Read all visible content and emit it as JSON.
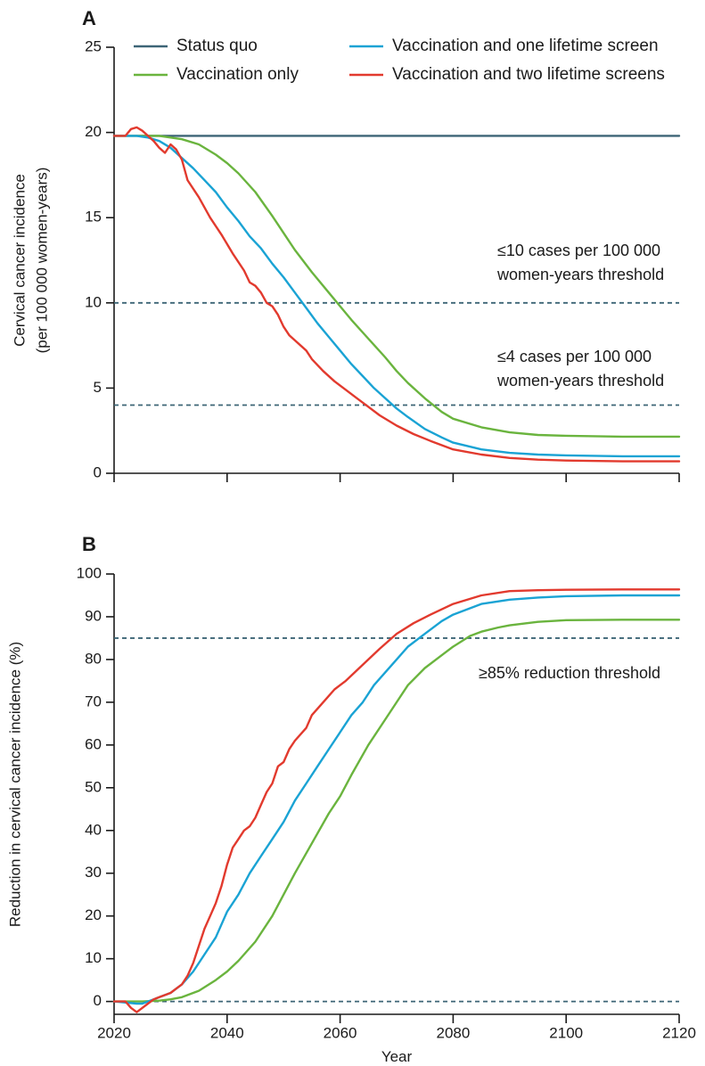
{
  "chart_data": [
    {
      "panel": "A",
      "type": "line",
      "xlabel": "",
      "ylabel_lines": [
        "Cervical cancer incidence",
        "(per 100 000 women-years)"
      ],
      "xlim": [
        2020,
        2120
      ],
      "ylim": [
        0,
        25
      ],
      "xticks": [
        2020,
        2040,
        2060,
        2080,
        2100,
        2120
      ],
      "xtick_labels": [
        "",
        "",
        "",
        "",
        "",
        ""
      ],
      "yticks": [
        0,
        5,
        10,
        15,
        20,
        25
      ],
      "ytick_labels": [
        "0",
        "5",
        "10",
        "15",
        "20",
        "25"
      ],
      "grid": false,
      "legend": [
        {
          "label": "Status quo",
          "color": "#3d6576"
        },
        {
          "label": "Vaccination and one lifetime screen",
          "color": "#1aa3d4"
        },
        {
          "label": "Vaccination only",
          "color": "#6ab43e"
        },
        {
          "label": "Vaccination and two lifetime screens",
          "color": "#e23a2e"
        }
      ],
      "series": [
        {
          "name": "Status quo",
          "color": "#3d6576",
          "x": [
            2020,
            2025,
            2030,
            2040,
            2060,
            2080,
            2100,
            2120
          ],
          "y": [
            19.8,
            19.8,
            19.8,
            19.8,
            19.8,
            19.8,
            19.8,
            19.8
          ]
        },
        {
          "name": "Vaccination only",
          "color": "#6ab43e",
          "x": [
            2020,
            2025,
            2028,
            2030,
            2032,
            2035,
            2038,
            2040,
            2042,
            2045,
            2048,
            2050,
            2052,
            2055,
            2058,
            2060,
            2062,
            2065,
            2068,
            2070,
            2072,
            2075,
            2078,
            2080,
            2085,
            2090,
            2095,
            2100,
            2110,
            2120
          ],
          "y": [
            19.8,
            19.8,
            19.8,
            19.7,
            19.6,
            19.3,
            18.7,
            18.2,
            17.6,
            16.5,
            15.1,
            14.1,
            13.1,
            11.8,
            10.6,
            9.8,
            9.0,
            7.9,
            6.8,
            6.0,
            5.3,
            4.4,
            3.6,
            3.2,
            2.7,
            2.4,
            2.25,
            2.2,
            2.15,
            2.15
          ]
        },
        {
          "name": "Vaccination and one lifetime screen",
          "color": "#1aa3d4",
          "x": [
            2020,
            2024,
            2026,
            2028,
            2030,
            2032,
            2034,
            2036,
            2038,
            2040,
            2042,
            2044,
            2046,
            2048,
            2050,
            2052,
            2054,
            2056,
            2058,
            2060,
            2062,
            2064,
            2066,
            2068,
            2070,
            2072,
            2075,
            2078,
            2080,
            2085,
            2090,
            2095,
            2100,
            2110,
            2120
          ],
          "y": [
            19.8,
            19.8,
            19.7,
            19.5,
            19.1,
            18.5,
            17.9,
            17.2,
            16.5,
            15.6,
            14.8,
            13.9,
            13.2,
            12.3,
            11.5,
            10.6,
            9.7,
            8.8,
            8.0,
            7.2,
            6.4,
            5.7,
            5.0,
            4.4,
            3.8,
            3.3,
            2.6,
            2.1,
            1.8,
            1.4,
            1.2,
            1.1,
            1.05,
            1.0,
            1.0
          ]
        },
        {
          "name": "Vaccination and two lifetime screens",
          "color": "#e23a2e",
          "x": [
            2020,
            2022,
            2023,
            2024,
            2025,
            2026,
            2027,
            2028,
            2029,
            2030,
            2031,
            2032,
            2033,
            2035,
            2037,
            2039,
            2041,
            2043,
            2044,
            2045,
            2046,
            2047,
            2048,
            2049,
            2050,
            2051,
            2052,
            2054,
            2055,
            2057,
            2059,
            2061,
            2063,
            2065,
            2067,
            2070,
            2073,
            2076,
            2080,
            2085,
            2090,
            2095,
            2100,
            2110,
            2120
          ],
          "y": [
            19.8,
            19.8,
            20.2,
            20.3,
            20.1,
            19.8,
            19.5,
            19.1,
            18.8,
            19.3,
            19.0,
            18.4,
            17.2,
            16.2,
            15.0,
            14.0,
            12.9,
            11.9,
            11.2,
            11.0,
            10.6,
            10.0,
            9.8,
            9.3,
            8.6,
            8.1,
            7.8,
            7.2,
            6.7,
            6.0,
            5.4,
            4.9,
            4.4,
            3.9,
            3.4,
            2.8,
            2.3,
            1.9,
            1.4,
            1.1,
            0.9,
            0.8,
            0.75,
            0.7,
            0.7
          ]
        }
      ],
      "thresholds": [
        {
          "y": 10,
          "label_lines": [
            "≤10 cases per 100 000",
            "women-years threshold"
          ]
        },
        {
          "y": 4,
          "label_lines": [
            "≤4 cases per 100 000",
            "women-years threshold"
          ]
        }
      ]
    },
    {
      "panel": "B",
      "type": "line",
      "xlabel": "Year",
      "ylabel_lines": [
        "Reduction in cervical cancer incidence (%)"
      ],
      "xlim": [
        2020,
        2120
      ],
      "ylim": [
        -3,
        100
      ],
      "xticks": [
        2020,
        2040,
        2060,
        2080,
        2100,
        2120
      ],
      "xtick_labels": [
        "2020",
        "2040",
        "2060",
        "2080",
        "2100",
        "2120"
      ],
      "yticks": [
        0,
        10,
        20,
        30,
        40,
        50,
        60,
        70,
        80,
        90,
        100
      ],
      "ytick_labels": [
        "0",
        "10",
        "20",
        "30",
        "40",
        "50",
        "60",
        "70",
        "80",
        "90",
        "100"
      ],
      "grid": false,
      "series": [
        {
          "name": "Vaccination only",
          "color": "#6ab43e",
          "x": [
            2020,
            2025,
            2028,
            2030,
            2032,
            2035,
            2038,
            2040,
            2042,
            2045,
            2048,
            2050,
            2052,
            2055,
            2058,
            2060,
            2062,
            2065,
            2068,
            2070,
            2072,
            2075,
            2078,
            2080,
            2083,
            2085,
            2088,
            2090,
            2095,
            2100,
            2110,
            2120
          ],
          "y": [
            0,
            0,
            0.2,
            0.5,
            1,
            2.5,
            5,
            7,
            9.5,
            14,
            20,
            25,
            30,
            37,
            44,
            48,
            53,
            60,
            66,
            70,
            74,
            78,
            81,
            83,
            85.5,
            86.5,
            87.5,
            88,
            88.8,
            89.2,
            89.3,
            89.3
          ]
        },
        {
          "name": "Vaccination and one lifetime screen",
          "color": "#1aa3d4",
          "x": [
            2020,
            2024,
            2025,
            2026,
            2027,
            2028,
            2030,
            2032,
            2034,
            2036,
            2038,
            2040,
            2042,
            2044,
            2046,
            2048,
            2050,
            2052,
            2054,
            2056,
            2058,
            2060,
            2062,
            2064,
            2066,
            2068,
            2070,
            2072,
            2075,
            2078,
            2080,
            2085,
            2090,
            2095,
            2100,
            2110,
            2120
          ],
          "y": [
            0,
            -0.5,
            -0.5,
            0,
            0.5,
            1,
            2,
            4,
            7,
            11,
            15,
            21,
            25,
            30,
            34,
            38,
            42,
            47,
            51,
            55,
            59,
            63,
            67,
            70,
            74,
            77,
            80,
            83,
            86,
            89,
            90.5,
            93,
            94,
            94.5,
            94.8,
            95,
            95
          ]
        },
        {
          "name": "Vaccination and two lifetime screens",
          "color": "#e23a2e",
          "x": [
            2020,
            2022,
            2023,
            2024,
            2025,
            2026,
            2027,
            2028,
            2029,
            2030,
            2031,
            2032,
            2033,
            2034,
            2035,
            2036,
            2037,
            2038,
            2039,
            2040,
            2041,
            2042,
            2043,
            2044,
            2045,
            2046,
            2047,
            2048,
            2049,
            2050,
            2051,
            2052,
            2054,
            2055,
            2057,
            2059,
            2061,
            2063,
            2065,
            2067,
            2070,
            2073,
            2076,
            2080,
            2085,
            2090,
            2095,
            2100,
            2110,
            2120
          ],
          "y": [
            0,
            0,
            -1.5,
            -2.5,
            -1.5,
            -0.5,
            0.5,
            1,
            1.5,
            2,
            3,
            4,
            6,
            9,
            13,
            17,
            20,
            23,
            27,
            32,
            36,
            38,
            40,
            41,
            43,
            46,
            49,
            51,
            55,
            56,
            59,
            61,
            64,
            67,
            70,
            73,
            75,
            77.5,
            80,
            82.5,
            86,
            88.5,
            90.5,
            93,
            95,
            96,
            96.2,
            96.3,
            96.4,
            96.4
          ]
        }
      ],
      "thresholds": [
        {
          "y": 85,
          "label_lines": [
            "≥85% reduction threshold"
          ]
        },
        {
          "y": 0,
          "label_lines": []
        }
      ]
    }
  ]
}
